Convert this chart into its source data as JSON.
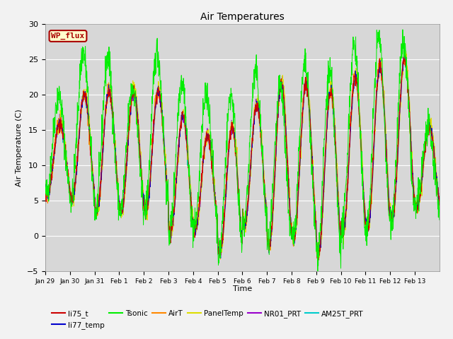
{
  "title": "Air Temperatures",
  "ylabel": "Air Temperature (C)",
  "xlabel": "Time",
  "ylim": [
    -5,
    30
  ],
  "background_color": "#f2f2f2",
  "plot_bg_color": "#e0e0e0",
  "series_colors": {
    "li75_t": "#cc0000",
    "li77_temp": "#0000cc",
    "Tsonic": "#00ee00",
    "AirT": "#ff8800",
    "PanelTemp": "#dddd00",
    "NR01_PRT": "#9900cc",
    "AM25T_PRT": "#00cccc"
  },
  "legend_box": {
    "label": "WP_flux",
    "facecolor": "#ffffcc",
    "edgecolor": "#aa0000",
    "textcolor": "#aa0000"
  },
  "tick_labels": [
    "Jan 29",
    "Jan 30",
    "Jan 31",
    "Feb 1",
    "Feb 2",
    "Feb 3",
    "Feb 4",
    "Feb 5",
    "Feb 6",
    "Feb 7",
    "Feb 8",
    "Feb 9",
    "Feb 10",
    "Feb 11",
    "Feb 12",
    "Feb 13"
  ],
  "n_points_per_day": 96,
  "n_days": 16,
  "day_min_temps_others": [
    6.0,
    5.0,
    3.5,
    3.5,
    3.5,
    0.5,
    1.0,
    -2.5,
    1.5,
    -1.5,
    -0.5,
    -2.5,
    0.5,
    1.0,
    2.5,
    4.0
  ],
  "day_max_temps_tsonic": [
    20,
    26,
    25,
    21,
    26,
    22,
    20,
    20,
    23,
    21,
    24,
    23,
    27,
    28,
    27,
    15
  ],
  "day_max_temps_others": [
    16,
    20,
    20.5,
    20.5,
    20.5,
    17,
    14,
    15.5,
    18.5,
    21.5,
    21.5,
    20.5,
    22.5,
    24,
    25,
    15.5
  ],
  "tsonic_extra_noise": 1.2,
  "other_noise": 0.5,
  "seed": 42
}
